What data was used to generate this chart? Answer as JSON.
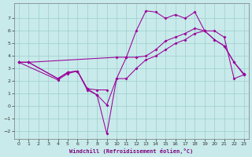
{
  "xlabel": "Windchill (Refroidissement éolien,°C)",
  "bg_color": "#c8eaea",
  "line_color": "#990099",
  "grid_color": "#9ecece",
  "xlim": [
    -0.5,
    23.5
  ],
  "ylim": [
    -2.6,
    8.2
  ],
  "xticks": [
    0,
    1,
    2,
    3,
    4,
    5,
    6,
    7,
    8,
    9,
    10,
    11,
    12,
    13,
    14,
    15,
    16,
    17,
    18,
    19,
    20,
    21,
    22,
    23
  ],
  "yticks": [
    -2,
    -1,
    0,
    1,
    2,
    3,
    4,
    5,
    6,
    7
  ],
  "line1_x": [
    0,
    1,
    10,
    11,
    12,
    13,
    14,
    15,
    16,
    17,
    18,
    19,
    20,
    21,
    22,
    23
  ],
  "line1_y": [
    3.5,
    3.5,
    3.9,
    3.9,
    3.9,
    4.0,
    4.5,
    5.2,
    5.5,
    5.8,
    6.2,
    6.0,
    5.3,
    4.8,
    3.5,
    2.6
  ],
  "line2_x": [
    0,
    1,
    4,
    5,
    6,
    7,
    8,
    9,
    10,
    11,
    12,
    13,
    14,
    15,
    16,
    17,
    18,
    19,
    20,
    21,
    22,
    23
  ],
  "line2_y": [
    3.5,
    3.5,
    2.2,
    2.7,
    2.8,
    1.3,
    0.9,
    -2.2,
    2.2,
    3.9,
    6.0,
    7.6,
    7.5,
    7.0,
    7.3,
    7.0,
    7.5,
    6.0,
    5.3,
    4.8,
    3.5,
    2.5
  ],
  "line3_x": [
    0,
    4,
    5,
    6,
    7,
    8,
    9,
    10,
    11,
    12,
    13,
    14,
    15,
    16,
    17,
    18,
    19,
    20,
    21,
    22,
    23
  ],
  "line3_y": [
    3.5,
    2.1,
    2.6,
    2.8,
    1.4,
    0.9,
    0.1,
    2.2,
    2.2,
    3.0,
    3.7,
    4.0,
    4.5,
    5.0,
    5.3,
    5.8,
    6.0,
    6.0,
    5.5,
    2.2,
    2.5
  ],
  "line4_x": [
    0,
    1,
    4,
    5,
    6,
    7,
    8,
    9
  ],
  "line4_y": [
    3.5,
    3.5,
    2.2,
    2.7,
    2.8,
    1.4,
    1.3,
    1.3
  ]
}
